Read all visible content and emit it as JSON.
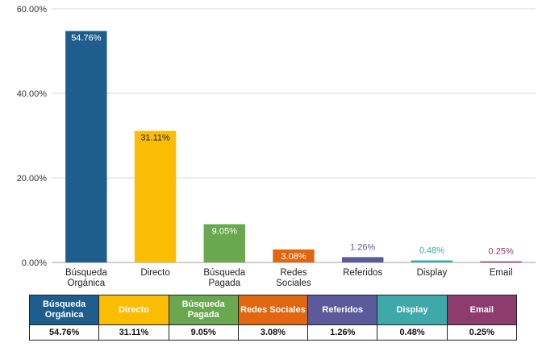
{
  "chart_data": {
    "type": "bar",
    "categories": [
      [
        "Búsqueda",
        "Orgánica"
      ],
      [
        "Directo"
      ],
      [
        "Búsqueda",
        "Pagada"
      ],
      [
        "Redes",
        "Sociales"
      ],
      [
        "Referidos"
      ],
      [
        "Display"
      ],
      [
        "Email"
      ]
    ],
    "values": [
      54.76,
      31.11,
      9.05,
      3.08,
      1.26,
      0.48,
      0.25
    ],
    "value_labels": [
      "54.76%",
      "31.11%",
      "9.05%",
      "3.08%",
      "1.26%",
      "0.48%",
      "0.25%"
    ],
    "colors": [
      "#1f5e8c",
      "#fbbc04",
      "#6aa84f",
      "#e06610",
      "#5b5b9b",
      "#3fa9a9",
      "#8e3b6e"
    ],
    "ylim": [
      0,
      60
    ],
    "yticks": [
      0,
      20,
      40,
      60
    ],
    "ytick_labels": [
      "0.00%",
      "20.00%",
      "40.00%",
      "60.00%"
    ],
    "grid": true,
    "legend": "table-below"
  },
  "table": {
    "headers": [
      [
        "Búsqueda",
        "Orgánica"
      ],
      [
        "Directo"
      ],
      [
        "Búsqueda",
        "Pagada"
      ],
      [
        "Redes Sociales"
      ],
      [
        "Referidos"
      ],
      [
        "Display"
      ],
      [
        "Email"
      ]
    ],
    "values": [
      "54.76%",
      "31.11%",
      "9.05%",
      "3.08%",
      "1.26%",
      "0.48%",
      "0.25%"
    ]
  }
}
